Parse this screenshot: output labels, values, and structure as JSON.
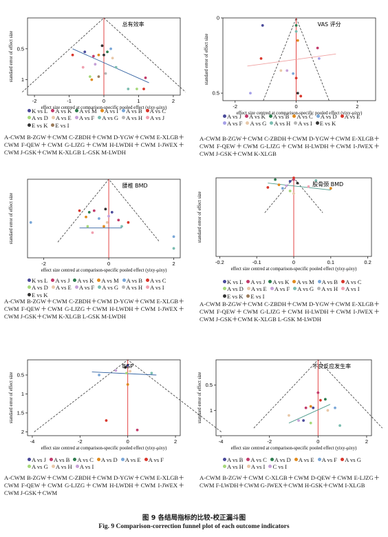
{
  "caption": {
    "cn": "图 9    各结局指标的比较-校正漏斗图",
    "en": "Fig. 9    Comparison-correction funnel plot of each outcome indicators"
  },
  "axis_text": {
    "ylabel": "standard error of effect size",
    "xlabel": "effect size centred at comparison-specific pooled effect (yixy-μixy)"
  },
  "panels": [
    {
      "title": "总有效率",
      "legend": [
        {
          "label": "K vs L",
          "color": "#4a4a9a"
        },
        {
          "label": "A vs K",
          "color": "#c23a6a"
        },
        {
          "label": "A vs M",
          "color": "#2e7d4f"
        },
        {
          "label": "A vs I",
          "color": "#e08a1e"
        },
        {
          "label": "A vs B",
          "color": "#7aa7d8"
        },
        {
          "label": "A vs C",
          "color": "#d9362b"
        },
        {
          "label": "A vs D",
          "color": "#a6d87a"
        },
        {
          "label": "A vs E",
          "color": "#e8c8a8"
        },
        {
          "label": "A vs F",
          "color": "#c6a0d8"
        },
        {
          "label": "A vs G",
          "color": "#7bbdb0"
        },
        {
          "label": "A vs H",
          "color": "#b5b5b5"
        },
        {
          "label": "A vs J",
          "color": "#f0a0b0"
        },
        {
          "label": "E vs K",
          "color": "#333333"
        },
        {
          "label": "E vs I",
          "color": "#9a7b5a"
        }
      ],
      "note": "A-CWM    B-ZGW＋CWM    C-ZBDH＋CWM    D-YGW＋CWM    E-XLGB＋CWM    F-QEW＋CWM    G-LJZG＋CWM    H-LWDH＋CWM    I-JWEX＋CWM    J-GSK＋CWM    K-XLGB    L-GSK    M-LWDH"
    },
    {
      "title": "VAS 评分",
      "legend": [
        {
          "label": "A vs J",
          "color": "#4a4a9a"
        },
        {
          "label": "A vs K",
          "color": "#c23a6a"
        },
        {
          "label": "A vs B",
          "color": "#2e7d4f"
        },
        {
          "label": "A vs C",
          "color": "#e08a1e"
        },
        {
          "label": "A vs D",
          "color": "#7aa7d8"
        },
        {
          "label": "A vs E",
          "color": "#d9362b"
        },
        {
          "label": "A vs F",
          "color": "#a6a0e8"
        },
        {
          "label": "A vs G",
          "color": "#e8c8a8"
        },
        {
          "label": "A vs H",
          "color": "#7bbdb0"
        },
        {
          "label": "A vs I",
          "color": "#b5b5b5"
        },
        {
          "label": "E vs K",
          "color": "#333333"
        }
      ],
      "note": "A-CWM    B-ZGW＋CWM    C-ZBDH＋CWM    D-YGW＋CWM    E-XLGB＋CWM    F-QEW＋CWM    G-LJZG＋CWM    H-LWDH＋CWM    I-JWEX＋CWM    J-GSK＋CWM    K-XLGB"
    },
    {
      "title": "腰椎 BMD",
      "legend": [
        {
          "label": "K vs L",
          "color": "#4a4a9a"
        },
        {
          "label": "A vs J",
          "color": "#c23a6a"
        },
        {
          "label": "A vs K",
          "color": "#2e7d4f"
        },
        {
          "label": "A vs M",
          "color": "#e08a1e"
        },
        {
          "label": "A vs B",
          "color": "#7aa7d8"
        },
        {
          "label": "A vs C",
          "color": "#d9362b"
        },
        {
          "label": "A vs D",
          "color": "#a6d87a"
        },
        {
          "label": "A vs E",
          "color": "#e8c8a8"
        },
        {
          "label": "A vs F",
          "color": "#c6a0d8"
        },
        {
          "label": "A vs G",
          "color": "#7bbdb0"
        },
        {
          "label": "A vs H",
          "color": "#b5b5b5"
        },
        {
          "label": "A vs I",
          "color": "#f0a0b0"
        },
        {
          "label": "E vs K",
          "color": "#333333"
        }
      ],
      "note": "A-CWM    B-ZGW＋CWM    C-ZBDH＋CWM    D-YGW＋CWM    E-XLGB＋CWM    F-QEW＋CWM    G-LJZG＋CWM    H-LWDH＋CWM    I-JWEX＋CWM    J-GSK＋CWM    K-XLGB    L-GSK    M-LWDH"
    },
    {
      "title": "股骨颈 BMD",
      "legend": [
        {
          "label": "K vs L",
          "color": "#4a4a9a"
        },
        {
          "label": "A vs J",
          "color": "#c23a6a"
        },
        {
          "label": "A vs K",
          "color": "#2e7d4f"
        },
        {
          "label": "A vs M",
          "color": "#e08a1e"
        },
        {
          "label": "A vs B",
          "color": "#7aa7d8"
        },
        {
          "label": "A vs C",
          "color": "#d9362b"
        },
        {
          "label": "A vs D",
          "color": "#a6d87a"
        },
        {
          "label": "A vs E",
          "color": "#e8c8a8"
        },
        {
          "label": "A vs F",
          "color": "#c6a0d8"
        },
        {
          "label": "A vs G",
          "color": "#7bbdb0"
        },
        {
          "label": "A vs H",
          "color": "#b5b5b5"
        },
        {
          "label": "A vs I",
          "color": "#f0a0b0"
        },
        {
          "label": "E vs K",
          "color": "#333333"
        },
        {
          "label": "E vs I",
          "color": "#9a7b5a"
        }
      ],
      "note": "A-CWM    B-ZGW＋CWM    C-ZBDH＋CWM    D-YGW＋CWM    E-XLGB＋CWM    F-QEW＋CWM    G-LJZG＋CWM    H-LWDH＋CWM    I-JWEX＋CWM    J-GSK＋CWM    K-XLGB    L-GSK    M-LWDH"
    },
    {
      "title": "BGP",
      "legend": [
        {
          "label": "A vs J",
          "color": "#4a4a9a"
        },
        {
          "label": "A vs B",
          "color": "#c23a6a"
        },
        {
          "label": "A vs C",
          "color": "#2e7d4f"
        },
        {
          "label": "A vs D",
          "color": "#e08a1e"
        },
        {
          "label": "A vs E",
          "color": "#7aa7d8"
        },
        {
          "label": "A vs F",
          "color": "#d9362b"
        },
        {
          "label": "A vs G",
          "color": "#a6d87a"
        },
        {
          "label": "A vs H",
          "color": "#e8c8a8"
        },
        {
          "label": "A vs I",
          "color": "#c6a0d8"
        }
      ],
      "note": "A-CWM    B-ZGW＋CWM    C-ZBDH＋CWM    D-YGW＋CWM    E-XLGB＋CWM    F-QEW＋CWM    G-LJZG＋CWM    H-LWDH＋CWM    I-JWEX＋CWM    J-GSK＋CWM"
    },
    {
      "title": "不良反应发生率",
      "legend": [
        {
          "label": "A vs B",
          "color": "#4a4a9a"
        },
        {
          "label": "A vs C",
          "color": "#c23a6a"
        },
        {
          "label": "A vs D",
          "color": "#2e7d4f"
        },
        {
          "label": "A vs E",
          "color": "#e08a1e"
        },
        {
          "label": "A vs F",
          "color": "#7aa7d8"
        },
        {
          "label": "A vs G",
          "color": "#d9362b"
        },
        {
          "label": "A vs H",
          "color": "#a6d87a"
        },
        {
          "label": "A vs I",
          "color": "#e8c8a8"
        },
        {
          "label": "C vs I",
          "color": "#c6a0d8"
        }
      ],
      "note": "A-CWM    B-ZGW＋CWM    C-XLGB＋CWM    D-QEW＋CWM    E-LJZG＋CWM    F-LWDH＋CWM    G-JWEX＋CWM    H-GSK＋CWM    I-XLGB"
    }
  ],
  "chart_data": [
    {
      "type": "scatter",
      "title": "总有效率",
      "xlabel": "effect size centred at comparison-specific pooled effect (yixy-μixy)",
      "ylabel": "standard error of effect size",
      "xlim": [
        -2.2,
        2.2
      ],
      "ylim": [
        1.25,
        0.0
      ],
      "y_inverted": true,
      "xticks": [
        -2,
        -1,
        0,
        1,
        2
      ],
      "yticks": [
        0.5,
        1
      ],
      "funnel_apex_se": 0.0,
      "funnel_base_se": 1.2,
      "points": [
        {
          "x": -0.9,
          "y": 0.6,
          "color": "#d9362b"
        },
        {
          "x": -0.55,
          "y": 0.55,
          "color": "#4a4a9a"
        },
        {
          "x": -0.3,
          "y": 0.62,
          "color": "#c23a6a"
        },
        {
          "x": -0.15,
          "y": 0.6,
          "color": "#e08a1e"
        },
        {
          "x": 0.0,
          "y": 0.6,
          "color": "#333333"
        },
        {
          "x": 0.1,
          "y": 0.55,
          "color": "#2e7d4f"
        },
        {
          "x": -0.05,
          "y": 0.45,
          "color": "#333333"
        },
        {
          "x": 0.2,
          "y": 0.5,
          "color": "#7aa7d8"
        },
        {
          "x": 0.25,
          "y": 0.65,
          "color": "#e8c8a8"
        },
        {
          "x": -0.25,
          "y": 0.75,
          "color": "#c6a0d8"
        },
        {
          "x": 0.35,
          "y": 0.8,
          "color": "#7bbdb0"
        },
        {
          "x": -0.6,
          "y": 0.8,
          "color": "#f0a0b0"
        },
        {
          "x": -0.4,
          "y": 0.95,
          "color": "#a6d87a"
        },
        {
          "x": 0.05,
          "y": 0.9,
          "color": "#b5b5b5"
        },
        {
          "x": -0.15,
          "y": 0.95,
          "color": "#9a7b5a"
        },
        {
          "x": 1.2,
          "y": 0.97,
          "color": "#c23a6a"
        },
        {
          "x": 1.15,
          "y": 1.15,
          "color": "#d9362b"
        },
        {
          "x": 0.7,
          "y": 1.15,
          "color": "#7bbdb0"
        },
        {
          "x": 0.95,
          "y": 1.15,
          "color": "#a6d87a"
        },
        {
          "x": -0.35,
          "y": 1.0,
          "color": "#e08a1e"
        }
      ],
      "trend": [
        {
          "x": -0.9,
          "y": 0.5
        },
        {
          "x": 1.3,
          "y": 1.05
        }
      ]
    },
    {
      "type": "scatter",
      "title": "VAS 评分",
      "xlabel": "effect size centred at comparison-specific pooled effect (yixy-μixy)",
      "ylabel": "standard error of effect size",
      "xlim": [
        -2.4,
        2.6
      ],
      "ylim": [
        0.55,
        0.0
      ],
      "y_inverted": true,
      "xticks": [
        -2,
        0,
        2
      ],
      "yticks": [
        0,
        0.5
      ],
      "funnel_apex_se": 0.0,
      "funnel_base_se": 0.55,
      "points": [
        {
          "x": -1.1,
          "y": 0.05,
          "color": "#4a4a9a"
        },
        {
          "x": 0.0,
          "y": 0.05,
          "color": "#2e7d4f"
        },
        {
          "x": 0.0,
          "y": 0.09,
          "color": "#7bbdb0"
        },
        {
          "x": 0.05,
          "y": 0.15,
          "color": "#e08a1e"
        },
        {
          "x": 0.7,
          "y": 0.2,
          "color": "#c23a6a"
        },
        {
          "x": 0.75,
          "y": 0.27,
          "color": "#a6a0e8"
        },
        {
          "x": -1.15,
          "y": 0.27,
          "color": "#d9362b"
        },
        {
          "x": -0.3,
          "y": 0.35,
          "color": "#c6a0d8"
        },
        {
          "x": -0.5,
          "y": 0.35,
          "color": "#e8c8a8"
        },
        {
          "x": 0.0,
          "y": 0.4,
          "color": "#d9362b"
        },
        {
          "x": 0.05,
          "y": 0.5,
          "color": "#333333"
        },
        {
          "x": 0.15,
          "y": 0.52,
          "color": "#d9362b"
        },
        {
          "x": -1.5,
          "y": 0.5,
          "color": "#a6a0e8"
        },
        {
          "x": -0.1,
          "y": 0.37,
          "color": "#7aa7d8"
        }
      ],
      "trend": [
        {
          "x": -1.6,
          "y": 0.32
        },
        {
          "x": 1.3,
          "y": 0.24
        }
      ]
    },
    {
      "type": "scatter",
      "title": "腰椎 BMD",
      "xlabel": "effect size centred at comparison-specific pooled effect (yixy-μixy)",
      "ylabel": "standard error of effect size",
      "xlim": [
        -2.5,
        2.2
      ],
      "ylim": [
        1.0,
        0.0
      ],
      "y_inverted": true,
      "xticks": [
        -2,
        0,
        2
      ],
      "yticks": [],
      "funnel_apex_se": 0.0,
      "funnel_base_se": 0.8,
      "points": [
        {
          "x": -0.9,
          "y": 0.4,
          "color": "#d9362b"
        },
        {
          "x": -0.6,
          "y": 0.42,
          "color": "#2e7d4f"
        },
        {
          "x": -0.45,
          "y": 0.4,
          "color": "#c23a6a"
        },
        {
          "x": -0.1,
          "y": 0.38,
          "color": "#333333"
        },
        {
          "x": 0.1,
          "y": 0.42,
          "color": "#4a4a9a"
        },
        {
          "x": -0.7,
          "y": 0.48,
          "color": "#e08a1e"
        },
        {
          "x": -0.3,
          "y": 0.5,
          "color": "#7aa7d8"
        },
        {
          "x": 0.3,
          "y": 0.52,
          "color": "#c23a6a"
        },
        {
          "x": -0.05,
          "y": 0.55,
          "color": "#e8c8a8"
        },
        {
          "x": 0.6,
          "y": 0.55,
          "color": "#d9362b"
        },
        {
          "x": -0.15,
          "y": 0.6,
          "color": "#e08a1e"
        },
        {
          "x": -0.65,
          "y": 0.6,
          "color": "#a6d87a"
        },
        {
          "x": 0.4,
          "y": 0.6,
          "color": "#7bbdb0"
        },
        {
          "x": 0.0,
          "y": 0.47,
          "color": "#c6a0d8"
        },
        {
          "x": -0.5,
          "y": 0.68,
          "color": "#f0a0b0"
        },
        {
          "x": -2.4,
          "y": 0.55,
          "color": "#7aa7d8"
        },
        {
          "x": 2.0,
          "y": 0.73,
          "color": "#7aa7d8"
        },
        {
          "x": 2.0,
          "y": 0.88,
          "color": "#7bbdb0"
        }
      ],
      "trend": [
        {
          "x": -0.9,
          "y": 0.62
        },
        {
          "x": 0.4,
          "y": 0.62
        }
      ]
    },
    {
      "type": "scatter",
      "title": "股骨颈 BMD",
      "xlabel": "effect size centred at comparison-specific pooled effect (yixy-μixy)",
      "ylabel": "standard error of effect size",
      "xlim": [
        -0.21,
        0.21
      ],
      "ylim": [
        0.09,
        0.0
      ],
      "y_inverted": true,
      "xticks": [
        -0.2,
        -0.1,
        0,
        0.1,
        0.2
      ],
      "yticks": [],
      "funnel_apex_se": 0.0,
      "funnel_base_se": 0.04,
      "points": [
        {
          "x": -0.05,
          "y": 0.002,
          "color": "#2e7d4f"
        },
        {
          "x": 0.0,
          "y": 0.002,
          "color": "#c23a6a"
        },
        {
          "x": 0.0,
          "y": 0.0,
          "color": "#d9362b"
        },
        {
          "x": -0.01,
          "y": 0.004,
          "color": "#4a4a9a"
        },
        {
          "x": 0.06,
          "y": 0.003,
          "color": "#7bbdb0"
        },
        {
          "x": -0.04,
          "y": 0.008,
          "color": "#e08a1e"
        },
        {
          "x": 0.01,
          "y": 0.006,
          "color": "#333333"
        },
        {
          "x": -0.02,
          "y": 0.009,
          "color": "#c6a0d8"
        },
        {
          "x": 0.04,
          "y": 0.01,
          "color": "#f0a0b0"
        },
        {
          "x": 0.1,
          "y": 0.012,
          "color": "#e08a1e"
        },
        {
          "x": -0.03,
          "y": 0.012,
          "color": "#7aa7d8"
        },
        {
          "x": -0.01,
          "y": 0.015,
          "color": "#a6d87a"
        },
        {
          "x": 0.0,
          "y": 0.018,
          "color": "#e8c8a8"
        },
        {
          "x": -0.07,
          "y": 0.011,
          "color": "#d9362b"
        }
      ],
      "trend": [
        {
          "x": -0.07,
          "y": 0.006
        },
        {
          "x": 0.1,
          "y": 0.014
        }
      ]
    },
    {
      "type": "scatter",
      "title": "BGP",
      "xlabel": "effect size centred at comparison-specific pooled effect (yixy-μixy)",
      "ylabel": "standard error of effect size",
      "xlim": [
        -4.2,
        2.2
      ],
      "ylim": [
        2.1,
        0.1
      ],
      "y_inverted": true,
      "xticks": [
        -4,
        -2,
        0,
        2
      ],
      "yticks": [
        0.5,
        1,
        1.5,
        2
      ],
      "funnel_apex_se": 0.1,
      "funnel_base_se": 2.0,
      "points": [
        {
          "x": -1.2,
          "y": 0.5,
          "color": "#7aa7d8"
        },
        {
          "x": -0.1,
          "y": 0.3,
          "color": "#333333"
        },
        {
          "x": 0.0,
          "y": 0.25,
          "color": "#4a4a9a"
        },
        {
          "x": -0.05,
          "y": 0.45,
          "color": "#a6d87a"
        },
        {
          "x": 0.1,
          "y": 0.4,
          "color": "#e8c8a8"
        },
        {
          "x": 1.0,
          "y": 0.45,
          "color": "#7bbdb0"
        },
        {
          "x": 0.0,
          "y": 0.75,
          "color": "#e08a1e"
        },
        {
          "x": -0.9,
          "y": 1.7,
          "color": "#d9362b"
        },
        {
          "x": 0.4,
          "y": 1.95,
          "color": "#c23a6a"
        },
        {
          "x": -0.5,
          "y": 0.38,
          "color": "#c6a0d8"
        }
      ],
      "trend": [
        {
          "x": -1.5,
          "y": 0.42
        },
        {
          "x": 1.2,
          "y": 0.5
        }
      ]
    },
    {
      "type": "scatter",
      "title": "不良反应发生率",
      "xlabel": "effect size centred at comparison-specific pooled effect (yixy-μixy)",
      "ylabel": "standard error of effect size",
      "xlim": [
        -4.2,
        2.2
      ],
      "ylim": [
        1.5,
        0.0
      ],
      "y_inverted": true,
      "xticks": [
        -4,
        -2,
        0,
        2
      ],
      "yticks": [
        0.5,
        1
      ],
      "funnel_apex_se": 0.0,
      "funnel_base_se": 1.35,
      "points": [
        {
          "x": 0.0,
          "y": 0.65,
          "color": "#c23a6a"
        },
        {
          "x": 0.3,
          "y": 0.78,
          "color": "#2e7d4f"
        },
        {
          "x": 0.1,
          "y": 0.8,
          "color": "#d9362b"
        },
        {
          "x": -0.2,
          "y": 0.95,
          "color": "#4a4a9a"
        },
        {
          "x": -0.5,
          "y": 0.95,
          "color": "#c23a6a"
        },
        {
          "x": -0.3,
          "y": 0.92,
          "color": "#e08a1e"
        },
        {
          "x": 0.4,
          "y": 1.0,
          "color": "#e8c8a8"
        },
        {
          "x": 0.7,
          "y": 0.95,
          "color": "#7aa7d8"
        },
        {
          "x": -1.2,
          "y": 1.1,
          "color": "#e8c8a8"
        },
        {
          "x": -0.6,
          "y": 1.2,
          "color": "#4a4a9a"
        },
        {
          "x": -0.3,
          "y": 1.25,
          "color": "#a6d87a"
        },
        {
          "x": -0.8,
          "y": 1.2,
          "color": "#c6a0d8"
        },
        {
          "x": 0.9,
          "y": 1.3,
          "color": "#7bbdb0"
        }
      ],
      "trend": [
        {
          "x": -1.2,
          "y": 1.25
        },
        {
          "x": 0.5,
          "y": 0.88
        }
      ]
    }
  ]
}
